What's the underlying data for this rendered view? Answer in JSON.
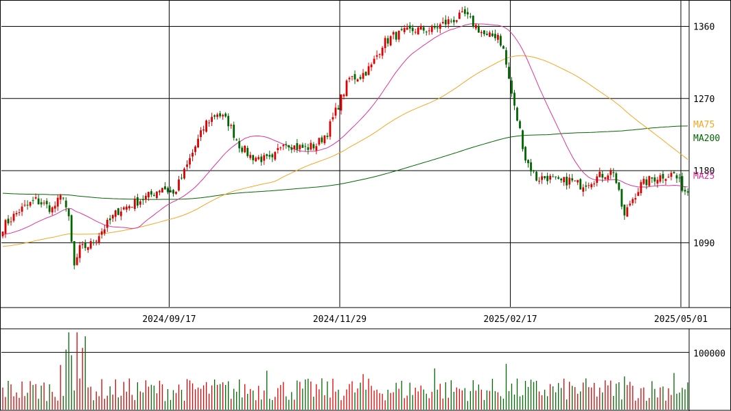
{
  "chart_data": {
    "type": "candlestick",
    "colors": {
      "up": "#dd0000",
      "down": "#006600",
      "ma25": "#dd3399",
      "ma75": "#f5a623",
      "ma200": "#006600",
      "grid": "#000000"
    },
    "price_axis": {
      "ticks": [
        {
          "value": 1360,
          "label": "1360"
        },
        {
          "value": 1270,
          "label": "1270"
        },
        {
          "value": 1180,
          "label": "1180"
        },
        {
          "value": 1090,
          "label": "1090"
        }
      ],
      "ylim": [
        1010,
        1392
      ]
    },
    "date_axis": {
      "labels": [
        "2024/09/17",
        "2024/11/29",
        "2025/02/17",
        "2025/05/01"
      ]
    },
    "volume_axis": {
      "ticks": [
        {
          "value": 100000,
          "label": "100000"
        }
      ],
      "ylim": [
        0,
        140000
      ]
    },
    "ma_legend": [
      {
        "name": "MA75",
        "color": "#f5a623",
        "value": 1228
      },
      {
        "name": "MA200",
        "color": "#006600",
        "value": 1210
      },
      {
        "name": "MA25",
        "color": "#dd3399",
        "value": 1162
      }
    ],
    "price_waypoints": [
      [
        0,
        1110
      ],
      [
        6,
        1130
      ],
      [
        12,
        1143
      ],
      [
        18,
        1132
      ],
      [
        22,
        1150
      ],
      [
        24,
        1118
      ],
      [
        26,
        1060
      ],
      [
        28,
        1082
      ],
      [
        32,
        1088
      ],
      [
        36,
        1105
      ],
      [
        42,
        1130
      ],
      [
        48,
        1140
      ],
      [
        54,
        1150
      ],
      [
        58,
        1160
      ],
      [
        62,
        1150
      ],
      [
        66,
        1178
      ],
      [
        70,
        1210
      ],
      [
        74,
        1240
      ],
      [
        78,
        1252
      ],
      [
        82,
        1240
      ],
      [
        86,
        1212
      ],
      [
        90,
        1198
      ],
      [
        94,
        1195
      ],
      [
        98,
        1192
      ],
      [
        102,
        1218
      ],
      [
        106,
        1210
      ],
      [
        110,
        1208
      ],
      [
        114,
        1212
      ],
      [
        118,
        1228
      ],
      [
        122,
        1262
      ],
      [
        126,
        1295
      ],
      [
        130,
        1298
      ],
      [
        134,
        1310
      ],
      [
        138,
        1338
      ],
      [
        142,
        1348
      ],
      [
        146,
        1352
      ],
      [
        150,
        1356
      ],
      [
        156,
        1356
      ],
      [
        162,
        1366
      ],
      [
        168,
        1374
      ],
      [
        172,
        1360
      ],
      [
        176,
        1346
      ],
      [
        180,
        1350
      ],
      [
        182,
        1330
      ],
      [
        184,
        1294
      ],
      [
        186,
        1258
      ],
      [
        188,
        1230
      ],
      [
        190,
        1195
      ],
      [
        194,
        1170
      ],
      [
        198,
        1172
      ],
      [
        202,
        1165
      ],
      [
        206,
        1168
      ],
      [
        210,
        1162
      ],
      [
        214,
        1168
      ],
      [
        218,
        1175
      ],
      [
        222,
        1180
      ],
      [
        224,
        1150
      ],
      [
        226,
        1122
      ],
      [
        228,
        1140
      ],
      [
        232,
        1162
      ],
      [
        236,
        1170
      ],
      [
        240,
        1174
      ],
      [
        244,
        1176
      ],
      [
        246,
        1165
      ],
      [
        248,
        1155
      ]
    ],
    "volume_spikes": [
      [
        21,
        78000
      ],
      [
        23,
        105000
      ],
      [
        24,
        135000
      ],
      [
        25,
        95000
      ],
      [
        27,
        135000
      ],
      [
        30,
        128000
      ],
      [
        29,
        108000
      ],
      [
        157,
        72000
      ],
      [
        183,
        80000
      ],
      [
        96,
        68000
      ],
      [
        131,
        62000
      ],
      [
        244,
        64000
      ],
      [
        226,
        58000
      ]
    ]
  }
}
